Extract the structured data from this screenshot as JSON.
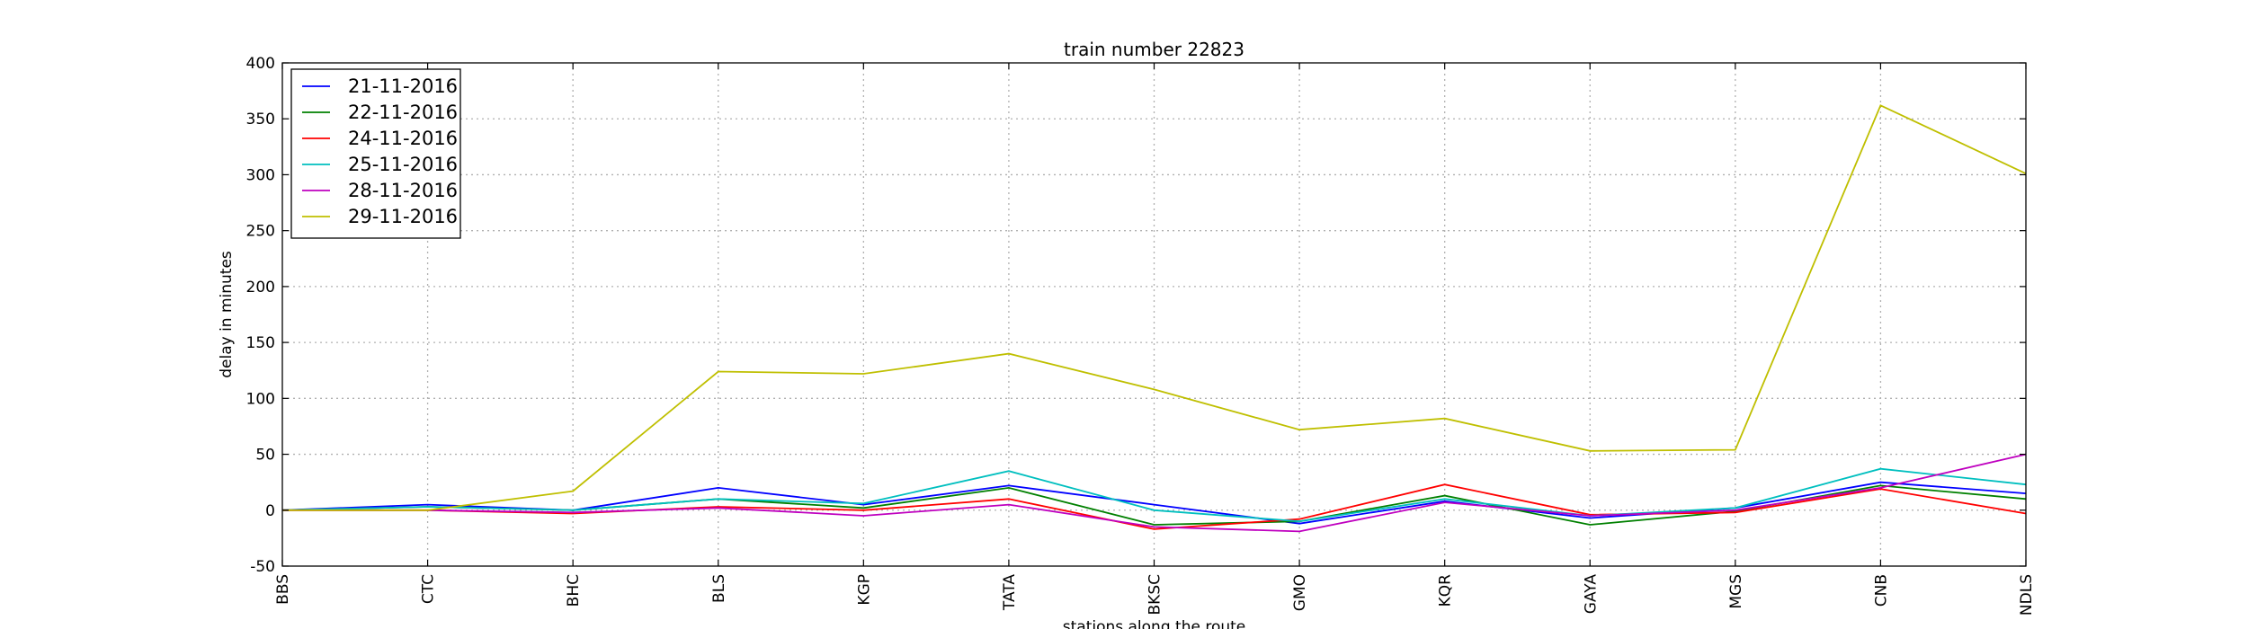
{
  "chart_data": {
    "type": "line",
    "title": "train number 22823",
    "xlabel": "stations along the route",
    "ylabel": "delay in minutes",
    "categories": [
      "BBS",
      "CTC",
      "BHC",
      "BLS",
      "KGP",
      "TATA",
      "BKSC",
      "GMO",
      "KQR",
      "GAYA",
      "MGS",
      "CNB",
      "NDLS"
    ],
    "ylim": [
      -50,
      400
    ],
    "yticks": [
      -50,
      0,
      50,
      100,
      150,
      200,
      250,
      300,
      350,
      400
    ],
    "grid": true,
    "legend_position": "top-left",
    "series": [
      {
        "name": "21-11-2016",
        "color": "#0000ff",
        "values": [
          0,
          5,
          0,
          20,
          5,
          22,
          5,
          -12,
          8,
          -7,
          2,
          25,
          15
        ]
      },
      {
        "name": "22-11-2016",
        "color": "#008000",
        "values": [
          0,
          3,
          0,
          10,
          2,
          20,
          -13,
          -10,
          13,
          -13,
          -1,
          22,
          10
        ]
      },
      {
        "name": "24-11-2016",
        "color": "#ff0000",
        "values": [
          0,
          0,
          -3,
          3,
          0,
          10,
          -17,
          -8,
          23,
          -4,
          -2,
          19,
          -3
        ]
      },
      {
        "name": "25-11-2016",
        "color": "#00bfbf",
        "values": [
          0,
          3,
          0,
          10,
          6,
          35,
          0,
          -10,
          10,
          -5,
          2,
          37,
          23
        ]
      },
      {
        "name": "28-11-2016",
        "color": "#bf00bf",
        "values": [
          0,
          0,
          -2,
          2,
          -5,
          5,
          -15,
          -19,
          7,
          -5,
          0,
          20,
          50
        ]
      },
      {
        "name": "29-11-2016",
        "color": "#bfbf00",
        "values": [
          0,
          0,
          17,
          124,
          122,
          140,
          108,
          72,
          82,
          53,
          54,
          362,
          301
        ]
      }
    ]
  }
}
